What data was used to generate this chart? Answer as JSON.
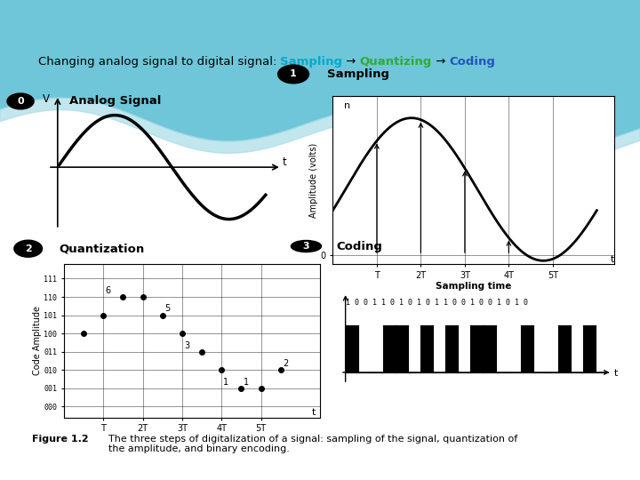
{
  "title_black": "Changing analog signal to digital signal: ",
  "title_cyan": "Sampling",
  "title_arrow1": " → ",
  "title_green": "Quantizing",
  "title_arrow2": " → ",
  "title_blue": "Coding",
  "panel0_title": "Analog Signal",
  "panel1_title": "Sampling",
  "panel2_title": "Quantization",
  "panel3_title": "Coding",
  "sampling_xlabel": "Sampling time",
  "sampling_ylabel": "Amplitude (volts)",
  "quantization_ylabel": "Code Amplitude",
  "quantization_yticks": [
    "000",
    "001",
    "010",
    "011",
    "100",
    "101",
    "110",
    "111"
  ],
  "sampling_xticks": [
    "T",
    "2T",
    "3T",
    "4T",
    "5T"
  ],
  "coding_bits": "1 0 0 1 1 0 1 0 1 0 1 1 0 0 1 0 0 1 0 1 0",
  "coding_signal": [
    1,
    0,
    0,
    1,
    1,
    0,
    1,
    0,
    1,
    0,
    1,
    1,
    0,
    0,
    1,
    0,
    0,
    1,
    0,
    1,
    0
  ],
  "sample_t": [
    0.5,
    1.0,
    1.5,
    2.0,
    2.5,
    3.0,
    3.5,
    4.0,
    4.5,
    5.0,
    5.5
  ],
  "sample_q": [
    4,
    5,
    6,
    6,
    5,
    4,
    3,
    2,
    1,
    1,
    2
  ],
  "num_annotations": [
    [
      1.05,
      6.2,
      "6"
    ],
    [
      2.55,
      5.2,
      "5"
    ],
    [
      3.05,
      3.2,
      "3"
    ],
    [
      4.05,
      1.2,
      "1"
    ],
    [
      4.55,
      1.2,
      "1"
    ],
    [
      5.55,
      2.2,
      "2"
    ]
  ],
  "bg_wave_color": "#6ec6d8",
  "bg_wave_color2": "#a8dce8",
  "caption_bold": "Figure 1.2",
  "caption_text": "The three steps of digitalization of a signal: sampling of the signal, quantization of\nthe amplitude, and binary encoding."
}
